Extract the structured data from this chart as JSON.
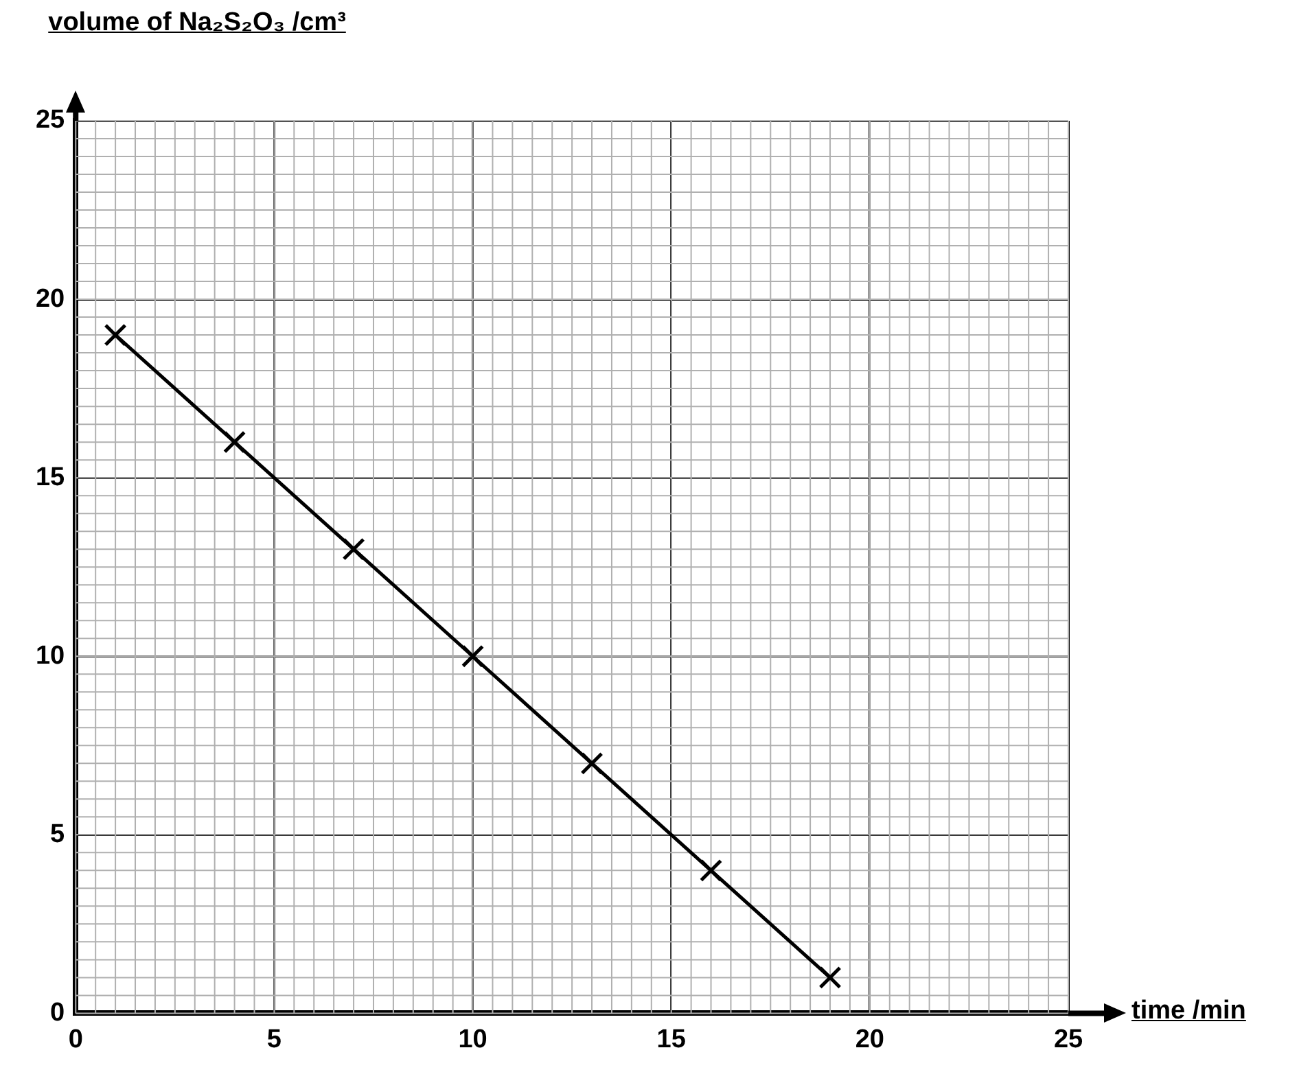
{
  "chart_data": {
    "type": "line",
    "xlabel": "time /min",
    "ylabel": "volume of Na₂S₂O₃ /cm³",
    "x": [
      1,
      4,
      7,
      10,
      13,
      16,
      19
    ],
    "series": [
      {
        "color": "#000000",
        "values": [
          19,
          16,
          13,
          10,
          7,
          4,
          1
        ]
      }
    ],
    "xlim": [
      0,
      25
    ],
    "ylim": [
      0,
      25
    ],
    "xticks": [
      0,
      5,
      10,
      15,
      20,
      25
    ],
    "yticks": [
      0,
      5,
      10,
      15,
      20,
      25
    ],
    "grid": true,
    "legend": false,
    "marker": "cross",
    "line_style": "solid"
  }
}
